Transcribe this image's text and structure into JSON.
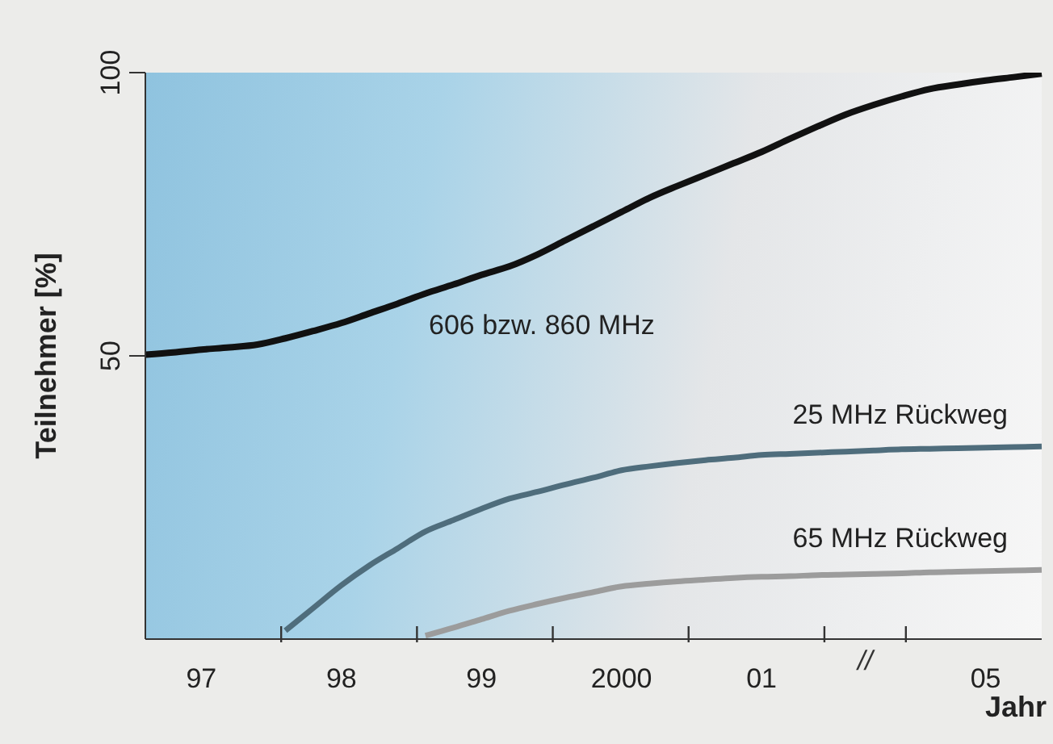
{
  "chart_data": {
    "type": "line",
    "ylabel": "Teilnehmer [%]",
    "xlabel": "Jahr",
    "categories": [
      null,
      null,
      "97",
      null,
      null,
      null,
      null,
      "98",
      null,
      null,
      null,
      null,
      "99",
      null,
      null,
      null,
      null,
      "2000",
      null,
      null,
      null,
      null,
      "01",
      null,
      null,
      null,
      null,
      null,
      null,
      null,
      "05",
      null,
      null
    ],
    "ylim": [
      0,
      100
    ],
    "yticks": [
      50,
      100
    ],
    "annotations": [
      "//"
    ],
    "legend": false,
    "grid": false,
    "marker": "none",
    "line_style": "solid",
    "series": [
      {
        "name": "606 bzw. 860 MHz",
        "color": "#111111",
        "values": [
          50.2,
          50.6,
          51.1,
          51.5,
          52,
          53.1,
          54.4,
          55.8,
          57.5,
          59.2,
          61,
          62.6,
          64.3,
          65.8,
          67.9,
          70.4,
          72.9,
          75.4,
          77.9,
          80,
          82,
          84,
          86,
          88.3,
          90.5,
          92.6,
          94.3,
          95.8,
          97.1,
          97.9,
          98.6,
          99.2,
          99.8
        ]
      },
      {
        "name": "25 MHz Rückweg",
        "color": "#4f6d7c",
        "values": [
          null,
          null,
          null,
          null,
          null,
          1.5,
          5.5,
          9.5,
          13,
          16,
          19,
          21,
          23,
          24.8,
          26,
          27.3,
          28.5,
          29.8,
          30.5,
          31.1,
          31.6,
          32,
          32.5,
          32.7,
          32.9,
          33.1,
          33.3,
          33.5,
          33.6,
          33.7,
          33.8,
          33.9,
          34
        ]
      },
      {
        "name": "65 MHz Rückweg",
        "color": "#9c9c9c",
        "values": [
          null,
          null,
          null,
          null,
          null,
          null,
          null,
          null,
          null,
          null,
          0.6,
          2,
          3.5,
          5,
          6.2,
          7.3,
          8.3,
          9.3,
          9.8,
          10.2,
          10.5,
          10.8,
          11,
          11.1,
          11.3,
          11.4,
          11.5,
          11.6,
          11.8,
          11.9,
          12,
          12.1,
          12.2
        ]
      }
    ]
  }
}
